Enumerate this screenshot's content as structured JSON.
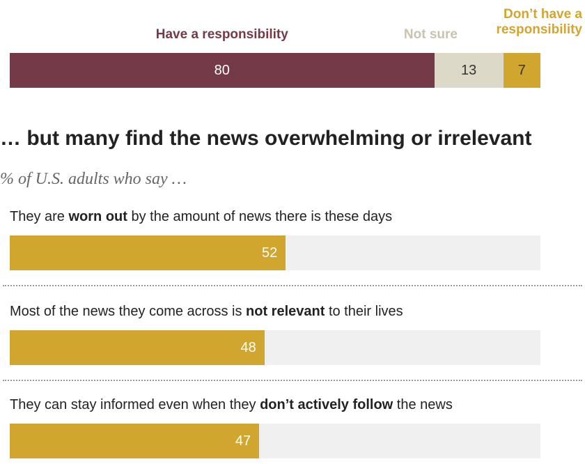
{
  "chart_data": [
    {
      "type": "stacked_bar",
      "series": [
        {
          "name": "Have a responsibility",
          "color": "#743a47",
          "values": [
            80
          ]
        },
        {
          "name": "Not sure",
          "color": "#dcd9c8",
          "values": [
            13
          ]
        },
        {
          "name": "Don’t have a responsibility",
          "color": "#d1a62f",
          "values": [
            7
          ]
        }
      ],
      "xlim": [
        0,
        100
      ]
    },
    {
      "type": "bar",
      "title": "… but many find the news overwhelming or irrelevant",
      "subtitle": "% of U.S. adults who say …",
      "categories": [
        [
          "They are ",
          "worn out",
          " by the amount of news there is these days"
        ],
        [
          "Most of the news they come across is ",
          "not relevant",
          " to their lives"
        ],
        [
          "They can stay informed even when they ",
          "don’t actively follow",
          " the news"
        ]
      ],
      "values": [
        52,
        48,
        47
      ],
      "color": "#d1a62f",
      "xlim": [
        0,
        100
      ]
    }
  ]
}
